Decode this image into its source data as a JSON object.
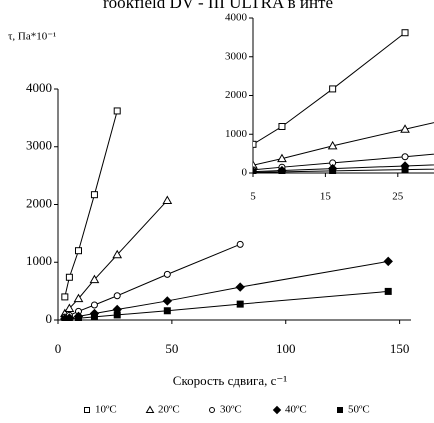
{
  "header": "rookfield DV - III ULTRA в инте",
  "chart_data": {
    "type": "line",
    "y_label": "τ, Па*10⁻¹",
    "x_label": "Скорость сдвига, с⁻¹",
    "xlim": [
      0,
      155
    ],
    "xticks": [
      0,
      50,
      100,
      150
    ],
    "ylim": [
      0,
      4000
    ],
    "yticks": [
      0,
      1000,
      2000,
      3000,
      4000
    ],
    "series": [
      {
        "name": "10ºC",
        "color": "#000000",
        "marker": "square",
        "filled": false,
        "x": [
          3,
          5,
          9,
          16,
          26
        ],
        "values": [
          400,
          740,
          1200,
          2170,
          3620
        ]
      },
      {
        "name": "20ºC",
        "color": "#000000",
        "marker": "triangle",
        "filled": false,
        "x": [
          3,
          5,
          9,
          16,
          26,
          48
        ],
        "values": [
          110,
          200,
          370,
          700,
          1130,
          2070
        ]
      },
      {
        "name": "30ºC",
        "color": "#000000",
        "marker": "circle",
        "filled": false,
        "x": [
          3,
          5,
          9,
          16,
          26,
          48,
          80
        ],
        "values": [
          50,
          80,
          150,
          260,
          420,
          790,
          1310
        ]
      },
      {
        "name": "40ºC",
        "color": "#000000",
        "marker": "diamond",
        "filled": true,
        "x": [
          3,
          5,
          9,
          16,
          26,
          48,
          80,
          145
        ],
        "values": [
          20,
          35,
          63,
          112,
          182,
          330,
          570,
          1015
        ]
      },
      {
        "name": "50ºC",
        "color": "#000000",
        "marker": "square",
        "filled": true,
        "x": [
          3,
          5,
          9,
          16,
          26,
          48,
          80,
          145
        ],
        "values": [
          10,
          17,
          30,
          55,
          88,
          160,
          275,
          495
        ]
      }
    ],
    "inset": {
      "xlim": [
        5,
        30
      ],
      "xticks": [
        5,
        15,
        25
      ],
      "ylim": [
        0,
        4000
      ],
      "yticks": [
        0,
        1000,
        2000,
        3000,
        4000
      ]
    }
  }
}
